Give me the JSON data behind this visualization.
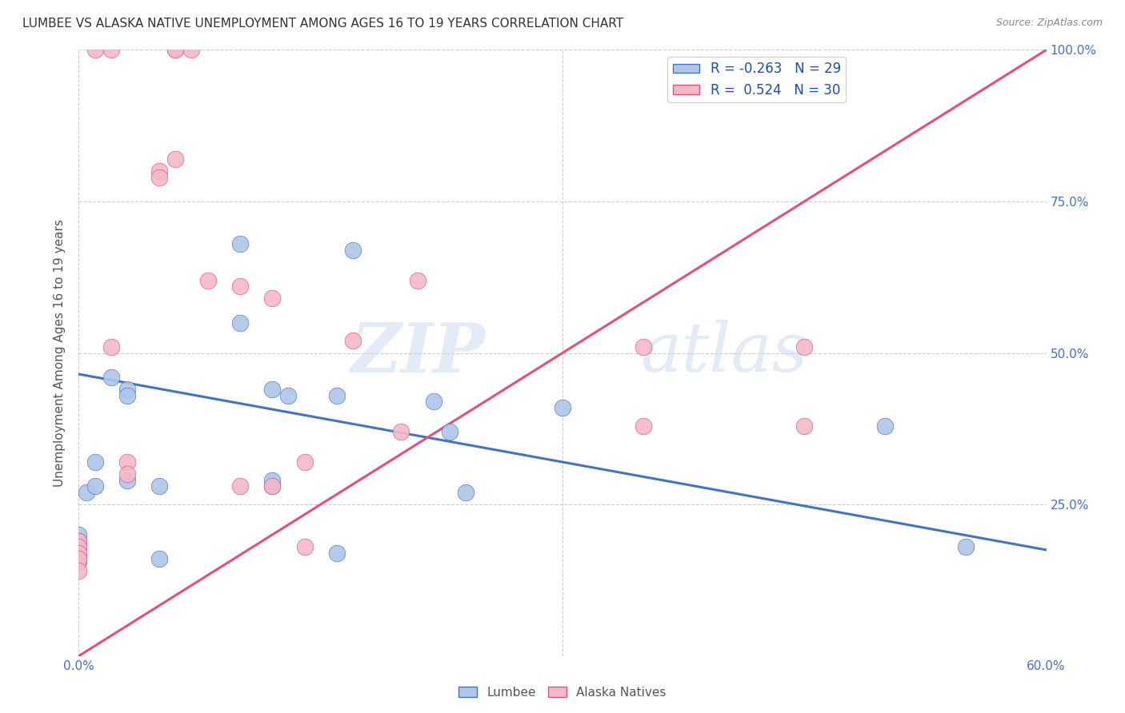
{
  "title": "LUMBEE VS ALASKA NATIVE UNEMPLOYMENT AMONG AGES 16 TO 19 YEARS CORRELATION CHART",
  "source": "Source: ZipAtlas.com",
  "ylabel": "Unemployment Among Ages 16 to 19 years",
  "xlabel_lumbee": "Lumbee",
  "xlabel_alaska": "Alaska Natives",
  "xlim": [
    0.0,
    0.6
  ],
  "ylim": [
    0.0,
    1.0
  ],
  "lumbee_R": -0.263,
  "lumbee_N": 29,
  "alaska_R": 0.524,
  "alaska_N": 30,
  "lumbee_color": "#aec6e8",
  "alaska_color": "#f4b8c8",
  "lumbee_line_color": "#4472c4",
  "alaska_line_color": "#e05080",
  "watermark_zip": "ZIP",
  "watermark_atlas": "atlas",
  "lumbee_x": [
    0.0,
    0.0,
    0.0,
    0.0,
    0.0,
    0.005,
    0.01,
    0.01,
    0.02,
    0.03,
    0.03,
    0.03,
    0.05,
    0.05,
    0.1,
    0.1,
    0.12,
    0.12,
    0.12,
    0.13,
    0.16,
    0.16,
    0.17,
    0.22,
    0.23,
    0.24,
    0.3,
    0.5,
    0.55
  ],
  "lumbee_y": [
    0.2,
    0.19,
    0.18,
    0.165,
    0.155,
    0.27,
    0.32,
    0.28,
    0.46,
    0.44,
    0.43,
    0.29,
    0.28,
    0.16,
    0.68,
    0.55,
    0.44,
    0.28,
    0.29,
    0.43,
    0.43,
    0.17,
    0.67,
    0.42,
    0.37,
    0.27,
    0.41,
    0.38,
    0.18
  ],
  "alaska_x": [
    0.0,
    0.0,
    0.0,
    0.0,
    0.0,
    0.01,
    0.02,
    0.02,
    0.03,
    0.03,
    0.05,
    0.05,
    0.06,
    0.06,
    0.06,
    0.07,
    0.08,
    0.1,
    0.1,
    0.12,
    0.12,
    0.14,
    0.14,
    0.17,
    0.2,
    0.21,
    0.35,
    0.35,
    0.45,
    0.45
  ],
  "alaska_y": [
    0.19,
    0.18,
    0.17,
    0.16,
    0.14,
    1.0,
    1.0,
    0.51,
    0.32,
    0.3,
    0.8,
    0.79,
    0.82,
    1.0,
    1.0,
    1.0,
    0.62,
    0.61,
    0.28,
    0.59,
    0.28,
    0.32,
    0.18,
    0.52,
    0.37,
    0.62,
    0.51,
    0.38,
    0.51,
    0.38
  ],
  "lumbee_line_x": [
    0.0,
    0.6
  ],
  "lumbee_line_y": [
    0.465,
    0.175
  ],
  "alaska_line_x": [
    0.0,
    0.6
  ],
  "alaska_line_y": [
    0.0,
    1.0
  ]
}
